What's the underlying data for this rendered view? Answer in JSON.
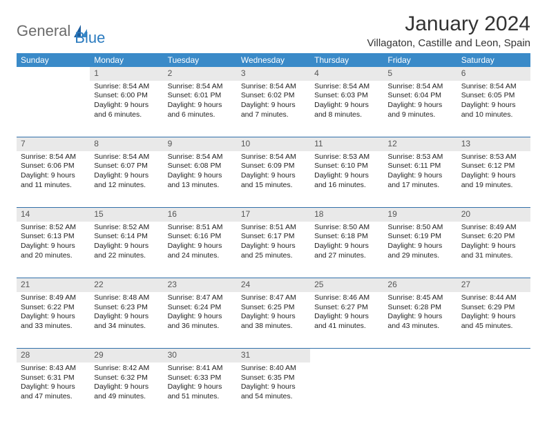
{
  "brand": {
    "general": "General",
    "blue": "Blue"
  },
  "title": "January 2024",
  "subtitle": "Villagaton, Castille and Leon, Spain",
  "colors": {
    "header_bg": "#3a8ac8",
    "header_fg": "#ffffff",
    "daynum_bg": "#e9e9e9",
    "rule": "#2f6fa8",
    "logo_gray": "#6b6b6b",
    "logo_blue": "#2b7bbf"
  },
  "weekdays": [
    "Sunday",
    "Monday",
    "Tuesday",
    "Wednesday",
    "Thursday",
    "Friday",
    "Saturday"
  ],
  "weeks": [
    [
      null,
      {
        "n": "1",
        "sr": "Sunrise: 8:54 AM",
        "ss": "Sunset: 6:00 PM",
        "d1": "Daylight: 9 hours",
        "d2": "and 6 minutes."
      },
      {
        "n": "2",
        "sr": "Sunrise: 8:54 AM",
        "ss": "Sunset: 6:01 PM",
        "d1": "Daylight: 9 hours",
        "d2": "and 6 minutes."
      },
      {
        "n": "3",
        "sr": "Sunrise: 8:54 AM",
        "ss": "Sunset: 6:02 PM",
        "d1": "Daylight: 9 hours",
        "d2": "and 7 minutes."
      },
      {
        "n": "4",
        "sr": "Sunrise: 8:54 AM",
        "ss": "Sunset: 6:03 PM",
        "d1": "Daylight: 9 hours",
        "d2": "and 8 minutes."
      },
      {
        "n": "5",
        "sr": "Sunrise: 8:54 AM",
        "ss": "Sunset: 6:04 PM",
        "d1": "Daylight: 9 hours",
        "d2": "and 9 minutes."
      },
      {
        "n": "6",
        "sr": "Sunrise: 8:54 AM",
        "ss": "Sunset: 6:05 PM",
        "d1": "Daylight: 9 hours",
        "d2": "and 10 minutes."
      }
    ],
    [
      {
        "n": "7",
        "sr": "Sunrise: 8:54 AM",
        "ss": "Sunset: 6:06 PM",
        "d1": "Daylight: 9 hours",
        "d2": "and 11 minutes."
      },
      {
        "n": "8",
        "sr": "Sunrise: 8:54 AM",
        "ss": "Sunset: 6:07 PM",
        "d1": "Daylight: 9 hours",
        "d2": "and 12 minutes."
      },
      {
        "n": "9",
        "sr": "Sunrise: 8:54 AM",
        "ss": "Sunset: 6:08 PM",
        "d1": "Daylight: 9 hours",
        "d2": "and 13 minutes."
      },
      {
        "n": "10",
        "sr": "Sunrise: 8:54 AM",
        "ss": "Sunset: 6:09 PM",
        "d1": "Daylight: 9 hours",
        "d2": "and 15 minutes."
      },
      {
        "n": "11",
        "sr": "Sunrise: 8:53 AM",
        "ss": "Sunset: 6:10 PM",
        "d1": "Daylight: 9 hours",
        "d2": "and 16 minutes."
      },
      {
        "n": "12",
        "sr": "Sunrise: 8:53 AM",
        "ss": "Sunset: 6:11 PM",
        "d1": "Daylight: 9 hours",
        "d2": "and 17 minutes."
      },
      {
        "n": "13",
        "sr": "Sunrise: 8:53 AM",
        "ss": "Sunset: 6:12 PM",
        "d1": "Daylight: 9 hours",
        "d2": "and 19 minutes."
      }
    ],
    [
      {
        "n": "14",
        "sr": "Sunrise: 8:52 AM",
        "ss": "Sunset: 6:13 PM",
        "d1": "Daylight: 9 hours",
        "d2": "and 20 minutes."
      },
      {
        "n": "15",
        "sr": "Sunrise: 8:52 AM",
        "ss": "Sunset: 6:14 PM",
        "d1": "Daylight: 9 hours",
        "d2": "and 22 minutes."
      },
      {
        "n": "16",
        "sr": "Sunrise: 8:51 AM",
        "ss": "Sunset: 6:16 PM",
        "d1": "Daylight: 9 hours",
        "d2": "and 24 minutes."
      },
      {
        "n": "17",
        "sr": "Sunrise: 8:51 AM",
        "ss": "Sunset: 6:17 PM",
        "d1": "Daylight: 9 hours",
        "d2": "and 25 minutes."
      },
      {
        "n": "18",
        "sr": "Sunrise: 8:50 AM",
        "ss": "Sunset: 6:18 PM",
        "d1": "Daylight: 9 hours",
        "d2": "and 27 minutes."
      },
      {
        "n": "19",
        "sr": "Sunrise: 8:50 AM",
        "ss": "Sunset: 6:19 PM",
        "d1": "Daylight: 9 hours",
        "d2": "and 29 minutes."
      },
      {
        "n": "20",
        "sr": "Sunrise: 8:49 AM",
        "ss": "Sunset: 6:20 PM",
        "d1": "Daylight: 9 hours",
        "d2": "and 31 minutes."
      }
    ],
    [
      {
        "n": "21",
        "sr": "Sunrise: 8:49 AM",
        "ss": "Sunset: 6:22 PM",
        "d1": "Daylight: 9 hours",
        "d2": "and 33 minutes."
      },
      {
        "n": "22",
        "sr": "Sunrise: 8:48 AM",
        "ss": "Sunset: 6:23 PM",
        "d1": "Daylight: 9 hours",
        "d2": "and 34 minutes."
      },
      {
        "n": "23",
        "sr": "Sunrise: 8:47 AM",
        "ss": "Sunset: 6:24 PM",
        "d1": "Daylight: 9 hours",
        "d2": "and 36 minutes."
      },
      {
        "n": "24",
        "sr": "Sunrise: 8:47 AM",
        "ss": "Sunset: 6:25 PM",
        "d1": "Daylight: 9 hours",
        "d2": "and 38 minutes."
      },
      {
        "n": "25",
        "sr": "Sunrise: 8:46 AM",
        "ss": "Sunset: 6:27 PM",
        "d1": "Daylight: 9 hours",
        "d2": "and 41 minutes."
      },
      {
        "n": "26",
        "sr": "Sunrise: 8:45 AM",
        "ss": "Sunset: 6:28 PM",
        "d1": "Daylight: 9 hours",
        "d2": "and 43 minutes."
      },
      {
        "n": "27",
        "sr": "Sunrise: 8:44 AM",
        "ss": "Sunset: 6:29 PM",
        "d1": "Daylight: 9 hours",
        "d2": "and 45 minutes."
      }
    ],
    [
      {
        "n": "28",
        "sr": "Sunrise: 8:43 AM",
        "ss": "Sunset: 6:31 PM",
        "d1": "Daylight: 9 hours",
        "d2": "and 47 minutes."
      },
      {
        "n": "29",
        "sr": "Sunrise: 8:42 AM",
        "ss": "Sunset: 6:32 PM",
        "d1": "Daylight: 9 hours",
        "d2": "and 49 minutes."
      },
      {
        "n": "30",
        "sr": "Sunrise: 8:41 AM",
        "ss": "Sunset: 6:33 PM",
        "d1": "Daylight: 9 hours",
        "d2": "and 51 minutes."
      },
      {
        "n": "31",
        "sr": "Sunrise: 8:40 AM",
        "ss": "Sunset: 6:35 PM",
        "d1": "Daylight: 9 hours",
        "d2": "and 54 minutes."
      },
      null,
      null,
      null
    ]
  ]
}
